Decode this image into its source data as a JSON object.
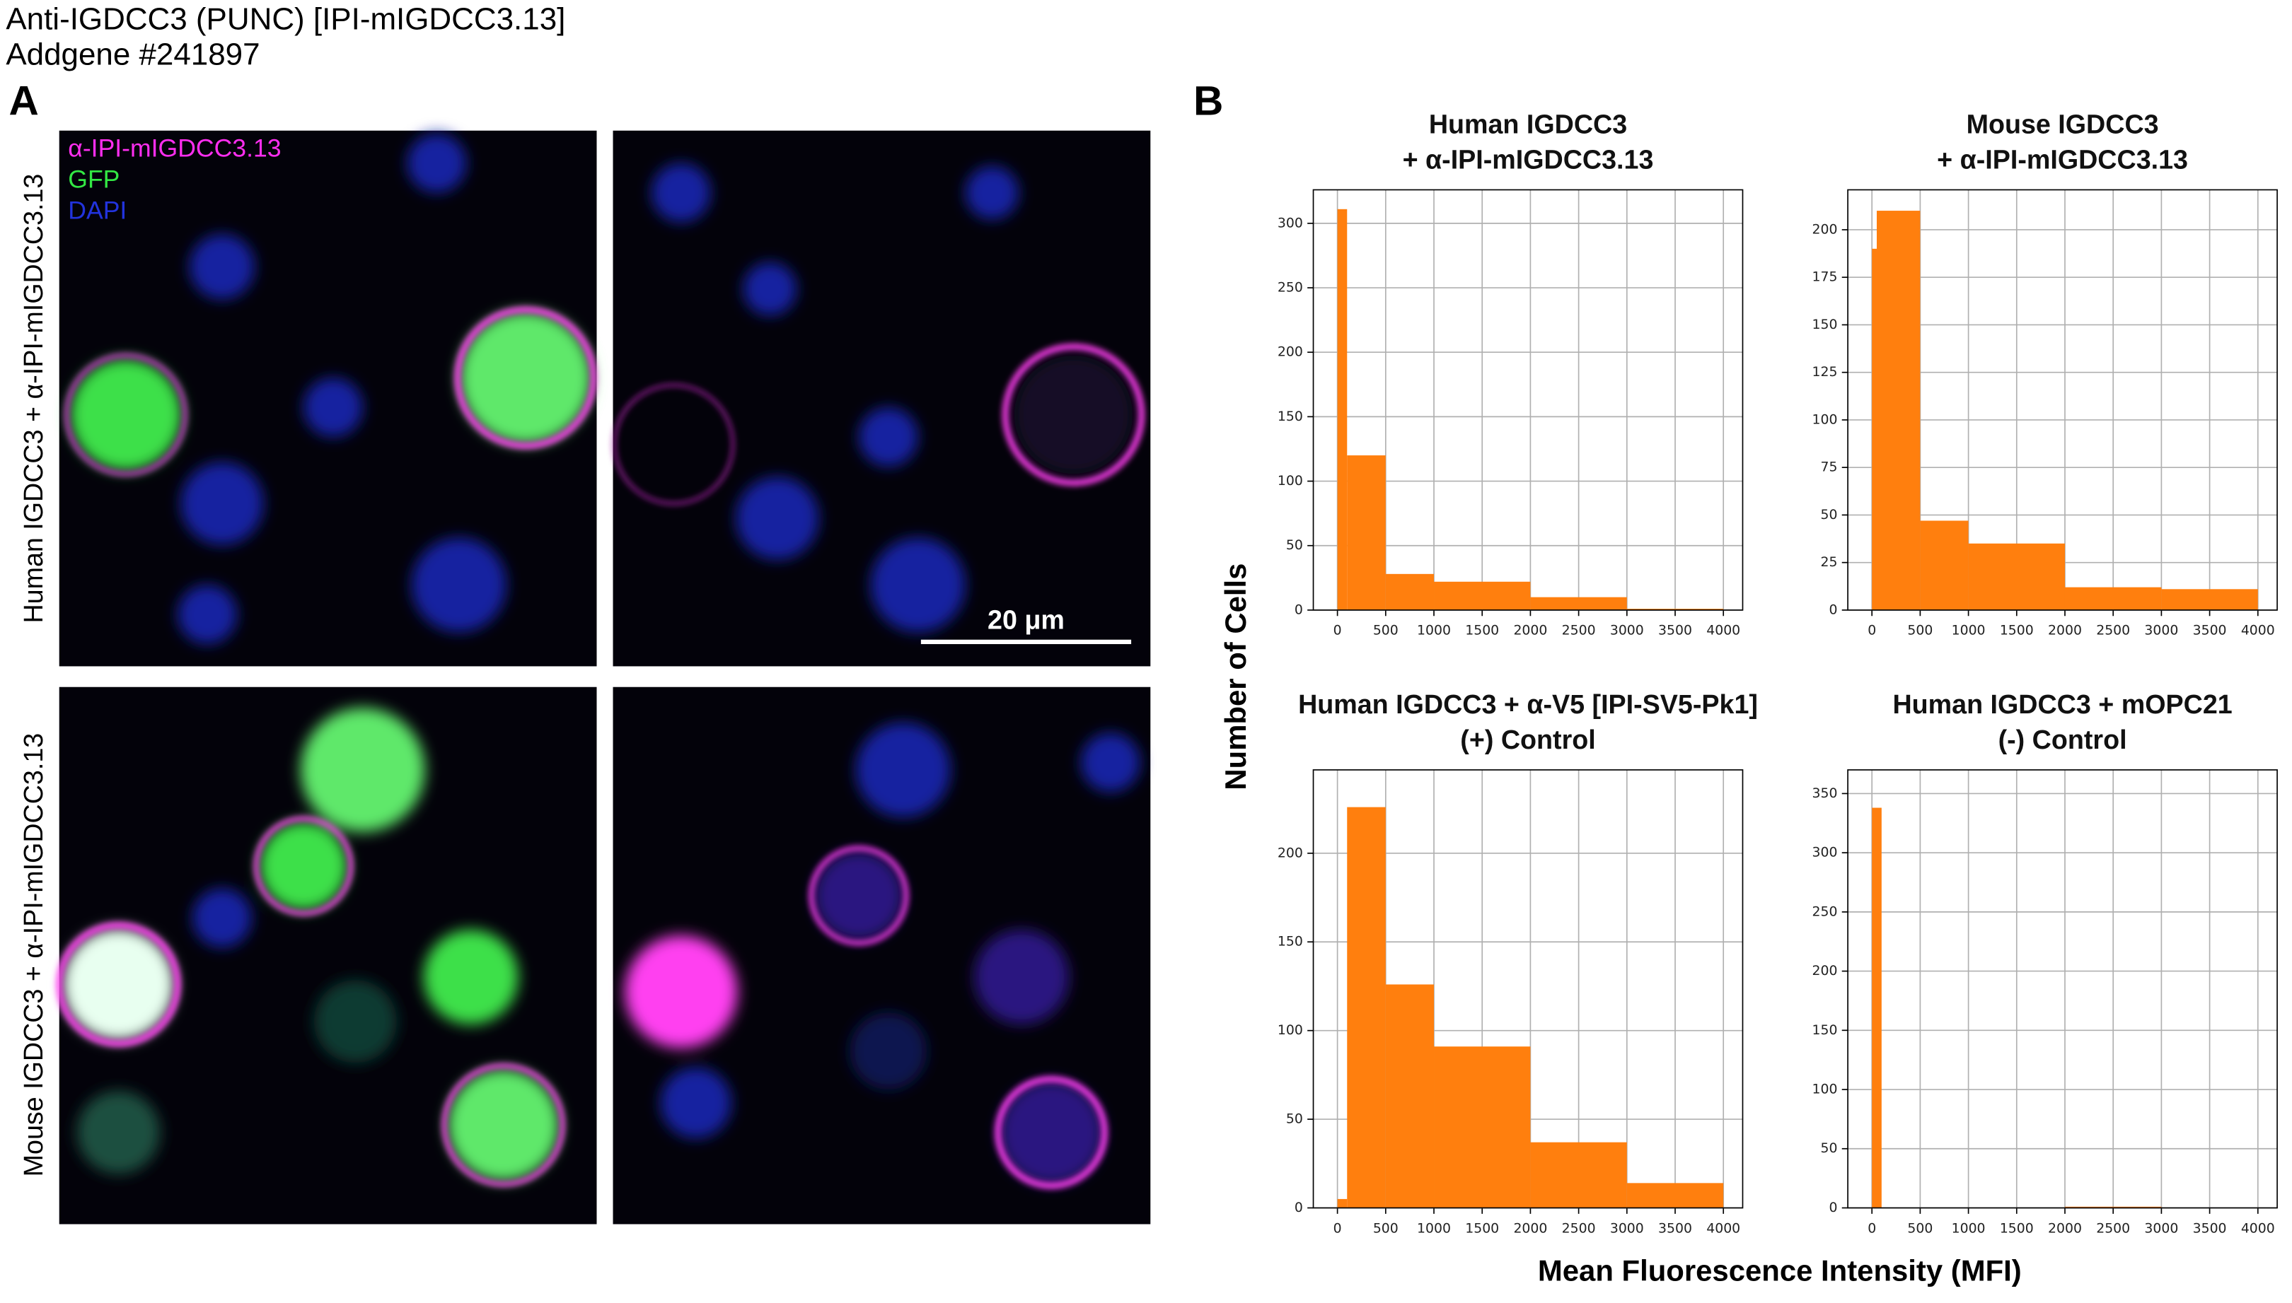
{
  "header": {
    "title": "Anti-IGDCC3 (PUNC) [IPI-mIGDCC3.13]",
    "addgene": "Addgene #241897"
  },
  "panel_a": {
    "label": "A",
    "legend": [
      "α-IPI-mIGDCC3.13",
      "GFP",
      "DAPI"
    ],
    "row_labels": [
      "Human IGDCC3 + α-IPI-mIGDCC3.13",
      "Mouse IGDCC3 + α-IPI-mIGDCC3.13"
    ],
    "scale_bar": "20 μm"
  },
  "panel_b": {
    "label": "B",
    "ylabel": "Number of Cells",
    "xlabel": "Mean Fluorescence Intensity (MFI)"
  },
  "chart_data": [
    {
      "type": "histogram",
      "title": [
        "Human IGDCC3",
        "+ α-IPI-mIGDCC3.13"
      ],
      "color": "#ff7f0e",
      "grid": true,
      "bins": [
        0,
        100,
        500,
        1000,
        2000,
        3000,
        4000
      ],
      "counts": [
        311,
        120,
        28,
        22,
        10,
        1
      ],
      "xlim": [
        -250,
        4200
      ],
      "xticks": [
        0,
        500,
        1000,
        1500,
        2000,
        2500,
        3000,
        3500,
        4000
      ],
      "ylim": [
        0,
        326
      ],
      "yticks": [
        0,
        50,
        100,
        150,
        200,
        250,
        300
      ]
    },
    {
      "type": "histogram",
      "title": [
        "Mouse IGDCC3",
        "+ α-IPI-mIGDCC3.13"
      ],
      "color": "#ff7f0e",
      "grid": true,
      "bins": [
        0,
        50,
        500,
        1000,
        2000,
        3000,
        4000
      ],
      "counts": [
        190,
        210,
        47,
        35,
        12,
        11
      ],
      "xlim": [
        -250,
        4200
      ],
      "xticks": [
        0,
        500,
        1000,
        1500,
        2000,
        2500,
        3000,
        3500,
        4000
      ],
      "ylim": [
        0,
        221
      ],
      "yticks": [
        0,
        25,
        50,
        75,
        100,
        125,
        150,
        175,
        200
      ]
    },
    {
      "type": "histogram",
      "title": [
        "Human IGDCC3 + α-V5 [IPI-SV5-Pk1]",
        "(+) Control"
      ],
      "color": "#ff7f0e",
      "grid": true,
      "bins": [
        0,
        100,
        500,
        1000,
        2000,
        3000,
        4000
      ],
      "counts": [
        5,
        226,
        126,
        91,
        37,
        14
      ],
      "xlim": [
        -250,
        4200
      ],
      "xticks": [
        0,
        500,
        1000,
        1500,
        2000,
        2500,
        3000,
        3500,
        4000
      ],
      "ylim": [
        0,
        247
      ],
      "yticks": [
        0,
        50,
        100,
        150,
        200
      ]
    },
    {
      "type": "histogram",
      "title": [
        "Human IGDCC3 + mOPC21",
        "(-) Control"
      ],
      "color": "#ff7f0e",
      "grid": true,
      "bins": [
        0,
        100,
        2000,
        3000,
        4000
      ],
      "counts": [
        338,
        0,
        1,
        0
      ],
      "xlim": [
        -250,
        4200
      ],
      "xticks": [
        0,
        500,
        1000,
        1500,
        2000,
        2500,
        3000,
        3500,
        4000
      ],
      "ylim": [
        0,
        370
      ],
      "yticks": [
        0,
        50,
        100,
        150,
        200,
        250,
        300,
        350
      ]
    }
  ]
}
